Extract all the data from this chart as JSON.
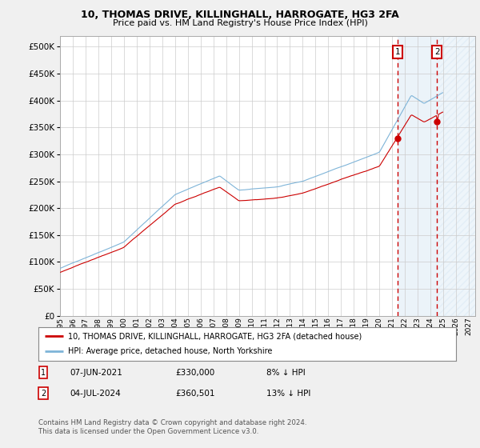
{
  "title": "10, THOMAS DRIVE, KILLINGHALL, HARROGATE, HG3 2FA",
  "subtitle": "Price paid vs. HM Land Registry's House Price Index (HPI)",
  "xlim_start": 1995.0,
  "xlim_end": 2027.5,
  "ylim": [
    0,
    520000
  ],
  "yticks": [
    0,
    50000,
    100000,
    150000,
    200000,
    250000,
    300000,
    350000,
    400000,
    450000,
    500000
  ],
  "hpi_color": "#7eb4d8",
  "price_color": "#cc0000",
  "marker1_date": 2021.44,
  "marker2_date": 2024.51,
  "marker1_price": 330000,
  "marker2_price": 360501,
  "marker1_label": "07-JUN-2021",
  "marker2_label": "04-JUL-2024",
  "marker1_pct": "8% ↓ HPI",
  "marker2_pct": "13% ↓ HPI",
  "legend_line1": "10, THOMAS DRIVE, KILLINGHALL, HARROGATE, HG3 2FA (detached house)",
  "legend_line2": "HPI: Average price, detached house, North Yorkshire",
  "footer": "Contains HM Land Registry data © Crown copyright and database right 2024.\nThis data is licensed under the Open Government Licence v3.0.",
  "background_color": "#f0f0f0",
  "plot_bg": "#ffffff",
  "shade_color": "#c8dff0",
  "grid_color": "#cccccc",
  "title_fontsize": 9,
  "subtitle_fontsize": 8
}
